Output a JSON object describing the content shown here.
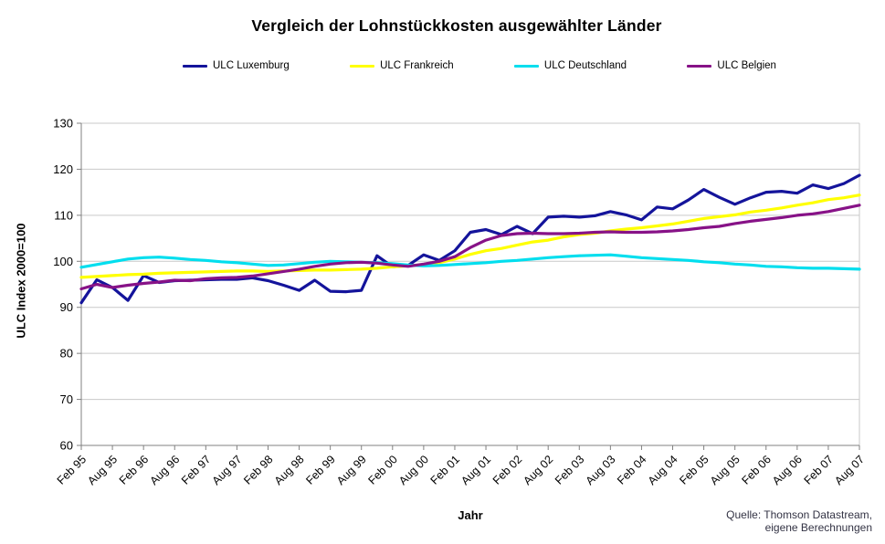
{
  "title": "Vergleich der Lohnstückkosten ausgewählter Länder",
  "x_axis_title": "Jahr",
  "y_axis_title": "ULC Index 2000=100",
  "source_line1": "Quelle: Thomson Datastream,",
  "source_line2": "eigene Berechnungen",
  "chart_data": {
    "type": "line",
    "x_frequency": "quarterly",
    "x_tick_every": 2,
    "x_tick_labels": [
      "Feb 95",
      "Aug 95",
      "Feb 96",
      "Aug 96",
      "Feb 97",
      "Aug 97",
      "Feb 98",
      "Aug 98",
      "Feb 99",
      "Aug 99",
      "Feb 00",
      "Aug 00",
      "Feb 01",
      "Aug 01",
      "Feb 02",
      "Aug 02",
      "Feb 03",
      "Aug 03",
      "Feb 04",
      "Aug 04",
      "Feb 05",
      "Aug 05",
      "Feb 06",
      "Aug 06",
      "Feb 07",
      "Aug 07"
    ],
    "y_ticks": [
      60,
      70,
      80,
      90,
      100,
      110,
      120,
      130
    ],
    "ylim": [
      60,
      130
    ],
    "grid": "horizontal",
    "legend_position": "top",
    "series": [
      {
        "name": "ULC Luxemburg",
        "color": "#14149B",
        "values": [
          91.0,
          96.0,
          94.3,
          91.5,
          96.9,
          95.4,
          95.8,
          95.9,
          96.0,
          96.1,
          96.1,
          96.4,
          95.8,
          94.8,
          93.7,
          95.9,
          93.5,
          93.4,
          93.7,
          101.2,
          98.8,
          99.1,
          101.4,
          100.2,
          102.3,
          106.3,
          106.9,
          105.8,
          107.6,
          106.0,
          109.6,
          109.8,
          109.6,
          109.9,
          110.8,
          110.1,
          109.0,
          111.8,
          111.4,
          113.3,
          115.6,
          113.9,
          112.4,
          113.8,
          115.0,
          115.2,
          114.8,
          116.6,
          115.8,
          116.9,
          118.7
        ]
      },
      {
        "name": "ULC Frankreich",
        "color": "#FFFF00",
        "values": [
          96.5,
          96.7,
          96.9,
          97.1,
          97.2,
          97.4,
          97.5,
          97.6,
          97.7,
          97.8,
          97.9,
          97.9,
          97.8,
          97.9,
          98.0,
          98.1,
          98.1,
          98.2,
          98.3,
          98.5,
          98.8,
          99.0,
          99.3,
          99.7,
          100.5,
          101.5,
          102.3,
          102.8,
          103.5,
          104.2,
          104.6,
          105.3,
          105.8,
          106.1,
          106.6,
          107.0,
          107.3,
          107.7,
          108.1,
          108.7,
          109.3,
          109.7,
          110.1,
          110.7,
          111.1,
          111.6,
          112.2,
          112.7,
          113.4,
          113.8,
          114.4
        ]
      },
      {
        "name": "ULC Deutschland",
        "color": "#00DEEE",
        "values": [
          98.7,
          99.3,
          99.9,
          100.5,
          100.8,
          100.9,
          100.7,
          100.4,
          100.2,
          99.9,
          99.7,
          99.4,
          99.1,
          99.2,
          99.5,
          99.8,
          100.0,
          99.9,
          99.8,
          99.7,
          99.5,
          99.2,
          99.0,
          99.1,
          99.3,
          99.5,
          99.7,
          100.0,
          100.2,
          100.5,
          100.8,
          101.0,
          101.2,
          101.3,
          101.4,
          101.1,
          100.8,
          100.6,
          100.4,
          100.2,
          99.9,
          99.7,
          99.4,
          99.2,
          98.9,
          98.8,
          98.6,
          98.5,
          98.5,
          98.4,
          98.3
        ]
      },
      {
        "name": "ULC Belgien",
        "color": "#871287",
        "values": [
          94.0,
          95.0,
          94.3,
          94.8,
          95.2,
          95.5,
          95.9,
          95.8,
          96.2,
          96.4,
          96.5,
          96.8,
          97.3,
          97.8,
          98.3,
          98.9,
          99.4,
          99.7,
          99.8,
          99.6,
          99.2,
          98.9,
          99.4,
          100.0,
          101.0,
          103.0,
          104.6,
          105.6,
          106.0,
          106.1,
          106.0,
          106.0,
          106.1,
          106.3,
          106.4,
          106.3,
          106.3,
          106.4,
          106.6,
          106.9,
          107.3,
          107.6,
          108.2,
          108.7,
          109.1,
          109.5,
          110.0,
          110.3,
          110.8,
          111.5,
          112.2
        ]
      }
    ]
  }
}
